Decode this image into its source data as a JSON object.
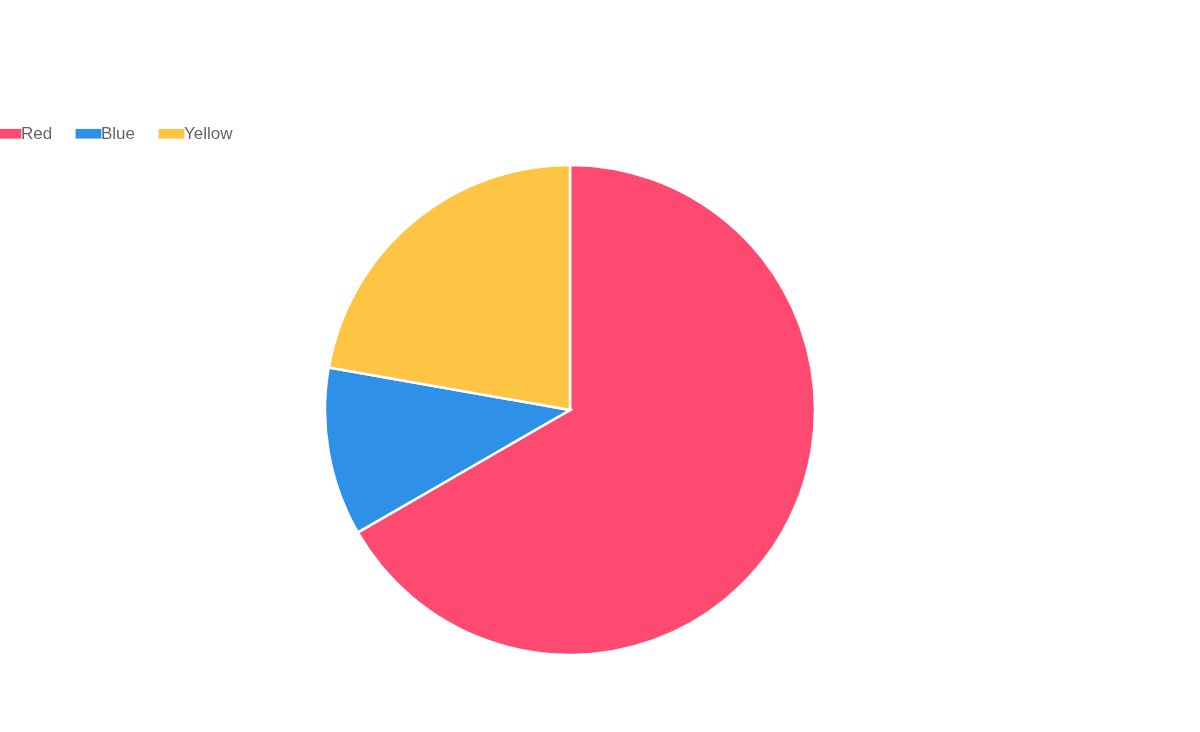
{
  "chart_data": {
    "type": "pie",
    "categories": [
      "Red",
      "Blue",
      "Yellow"
    ],
    "values": [
      66.67,
      11.11,
      22.22
    ],
    "colors": [
      "#fe4a71",
      "#2e90e6",
      "#fec444"
    ],
    "legend": "top"
  }
}
